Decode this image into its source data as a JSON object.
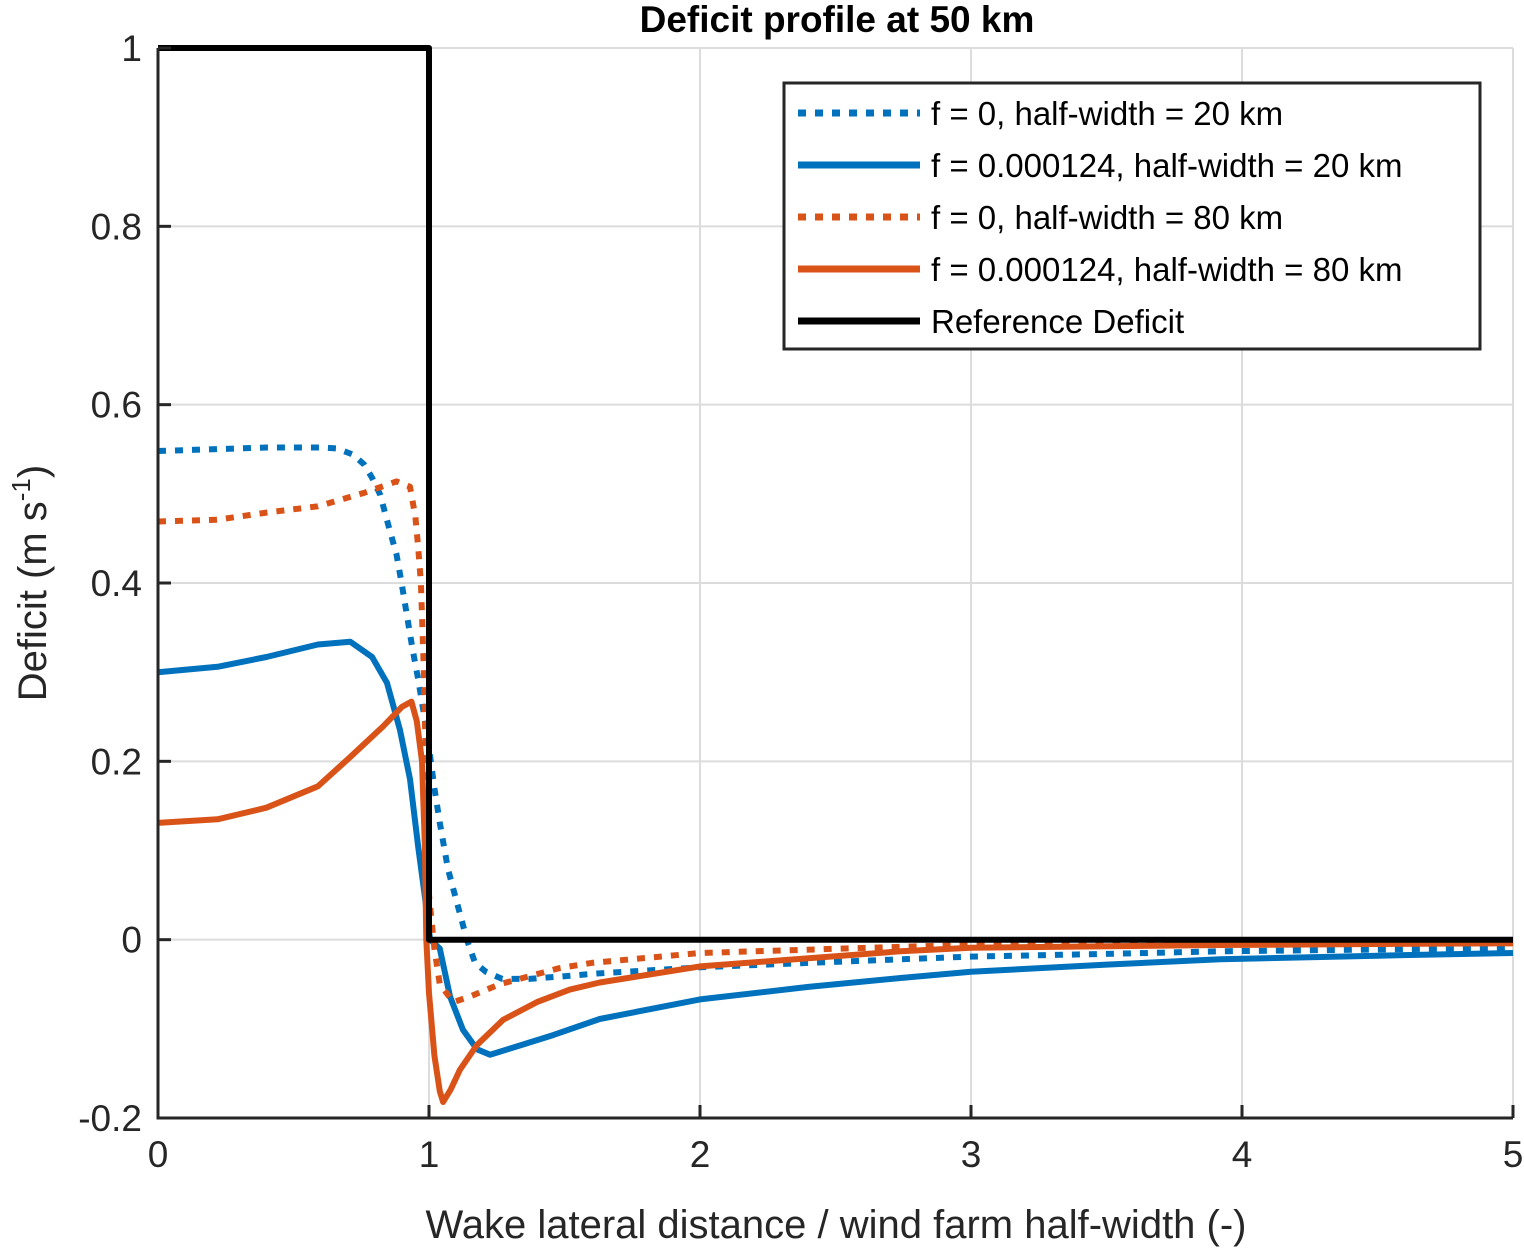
{
  "chart_data": {
    "type": "line",
    "title": "Deficit profile at 50 km",
    "xlabel": "Wake lateral distance / wind farm half-width (-)",
    "ylabel": {
      "text": "Deficit (m s",
      "superscript": "-1",
      "suffix": ")"
    },
    "xlim": [
      0,
      5
    ],
    "ylim": [
      -0.2,
      1
    ],
    "xticks": [
      0,
      1,
      2,
      3,
      4,
      5
    ],
    "xtick_labels": [
      "0",
      "1",
      "2",
      "3",
      "4",
      "5"
    ],
    "yticks": [
      -0.2,
      0,
      0.2,
      0.4,
      0.6,
      0.8,
      1
    ],
    "ytick_labels": [
      "-0.2",
      "0",
      "0.2",
      "0.4",
      "0.6",
      "0.8",
      "1"
    ],
    "grid": true,
    "legend_position": "top-right",
    "series": [
      {
        "name": "f = 0, half-width = 20 km",
        "color": "#0072BD",
        "style": "dotted",
        "x": [
          0,
          0.2,
          0.4,
          0.6,
          0.66,
          0.72,
          0.76,
          0.79,
          0.82,
          0.85,
          0.88,
          0.9,
          0.92,
          0.94,
          0.96,
          0.98,
          1.0,
          1.02,
          1.04,
          1.07,
          1.1,
          1.14,
          1.17,
          1.21,
          1.27,
          1.37,
          1.5,
          1.62,
          2.0,
          2.4,
          2.74,
          3.0,
          3.5,
          3.92,
          4.5,
          5.0
        ],
        "y": [
          0.548,
          0.55,
          0.552,
          0.552,
          0.551,
          0.544,
          0.533,
          0.518,
          0.499,
          0.465,
          0.432,
          0.398,
          0.361,
          0.325,
          0.292,
          0.255,
          0.215,
          0.17,
          0.131,
          0.079,
          0.045,
          0.0,
          -0.026,
          -0.036,
          -0.044,
          -0.044,
          -0.041,
          -0.038,
          -0.031,
          -0.026,
          -0.022,
          -0.019,
          -0.016,
          -0.013,
          -0.011,
          -0.009
        ]
      },
      {
        "name": "f = 0.000124, half-width = 20 km",
        "color": "#0072BD",
        "style": "solid",
        "x": [
          0,
          0.22,
          0.4,
          0.59,
          0.71,
          0.79,
          0.845,
          0.893,
          0.93,
          0.96,
          0.985,
          1.004,
          1.04,
          1.078,
          1.125,
          1.177,
          1.225,
          1.31,
          1.458,
          1.63,
          2.0,
          2.4,
          2.74,
          3.0,
          3.5,
          3.92,
          4.5,
          5.0
        ],
        "y": [
          0.3,
          0.306,
          0.317,
          0.331,
          0.334,
          0.317,
          0.288,
          0.235,
          0.18,
          0.104,
          0.048,
          0.0,
          -0.01,
          -0.064,
          -0.101,
          -0.123,
          -0.129,
          -0.121,
          -0.107,
          -0.089,
          -0.067,
          -0.053,
          -0.043,
          -0.036,
          -0.028,
          -0.022,
          -0.018,
          -0.015
        ]
      },
      {
        "name": "f = 0, half-width = 80 km",
        "color": "#D95319",
        "style": "dotted",
        "x": [
          0,
          0.22,
          0.4,
          0.59,
          0.76,
          0.88,
          0.93,
          0.95,
          0.96,
          0.97,
          0.98,
          0.99,
          1.0,
          1.02,
          1.04,
          1.09,
          1.15,
          1.26,
          1.37,
          1.48,
          1.6,
          2.0,
          2.74,
          3.0,
          3.92,
          5.0
        ],
        "y": [
          0.469,
          0.471,
          0.479,
          0.486,
          0.501,
          0.514,
          0.508,
          0.474,
          0.44,
          0.4,
          0.31,
          0.18,
          0.05,
          -0.01,
          -0.05,
          -0.07,
          -0.064,
          -0.05,
          -0.041,
          -0.032,
          -0.026,
          -0.015,
          -0.008,
          -0.006,
          -0.005,
          -0.004
        ]
      },
      {
        "name": "f = 0.000124, half-width = 80 km",
        "color": "#D95319",
        "style": "solid",
        "x": [
          0,
          0.22,
          0.4,
          0.59,
          0.71,
          0.83,
          0.9,
          0.935,
          0.955,
          0.974,
          0.985,
          0.99,
          1.0,
          1.02,
          1.04,
          1.052,
          1.08,
          1.114,
          1.177,
          1.273,
          1.398,
          1.52,
          1.63,
          2.0,
          2.74,
          3.0,
          3.92,
          5.0
        ],
        "y": [
          0.131,
          0.135,
          0.148,
          0.172,
          0.205,
          0.239,
          0.261,
          0.267,
          0.245,
          0.2,
          0.104,
          0.0,
          -0.06,
          -0.13,
          -0.17,
          -0.182,
          -0.168,
          -0.146,
          -0.118,
          -0.09,
          -0.07,
          -0.056,
          -0.048,
          -0.03,
          -0.013,
          -0.009,
          -0.006,
          -0.004
        ]
      },
      {
        "name": "Reference Deficit",
        "color": "#000000",
        "style": "solid",
        "x": [
          0,
          1,
          1,
          5
        ],
        "y": [
          1,
          1,
          0,
          0
        ]
      }
    ]
  }
}
